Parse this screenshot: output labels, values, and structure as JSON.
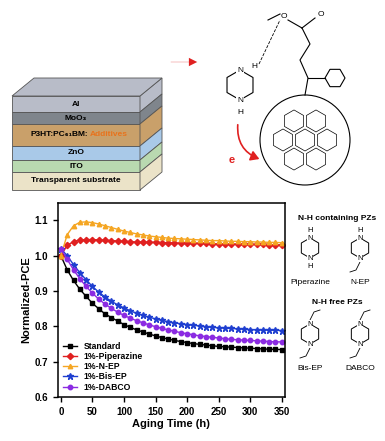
{
  "chart_data": {
    "type": "line",
    "x_label": "Aging Time (h)",
    "y_label": "Normalized-PCE",
    "x": [
      0,
      10,
      20,
      30,
      40,
      50,
      60,
      70,
      80,
      90,
      100,
      110,
      120,
      130,
      140,
      150,
      160,
      170,
      180,
      190,
      200,
      210,
      220,
      230,
      240,
      250,
      260,
      270,
      280,
      290,
      300,
      310,
      320,
      330,
      340,
      350
    ],
    "series": [
      {
        "name": "Standard",
        "color": "#000000",
        "marker": "square",
        "line_style": "solid",
        "values": [
          1.0,
          0.96,
          0.93,
          0.905,
          0.885,
          0.865,
          0.85,
          0.835,
          0.825,
          0.815,
          0.805,
          0.797,
          0.79,
          0.784,
          0.778,
          0.773,
          0.768,
          0.764,
          0.76,
          0.757,
          0.754,
          0.751,
          0.749,
          0.747,
          0.745,
          0.743,
          0.742,
          0.741,
          0.74,
          0.739,
          0.738,
          0.737,
          0.736,
          0.735,
          0.735,
          0.734
        ]
      },
      {
        "name": "1%-Piperazine",
        "color": "#e02020",
        "marker": "diamond",
        "line_style": "solid",
        "values": [
          1.0,
          1.03,
          1.04,
          1.045,
          1.046,
          1.046,
          1.045,
          1.044,
          1.043,
          1.042,
          1.041,
          1.04,
          1.039,
          1.039,
          1.038,
          1.038,
          1.037,
          1.037,
          1.036,
          1.036,
          1.036,
          1.035,
          1.035,
          1.035,
          1.034,
          1.034,
          1.034,
          1.033,
          1.033,
          1.033,
          1.032,
          1.032,
          1.032,
          1.031,
          1.031,
          1.031
        ]
      },
      {
        "name": "1%-N-EP",
        "color": "#f5a623",
        "marker": "triangle",
        "line_style": "solid",
        "values": [
          1.0,
          1.06,
          1.085,
          1.095,
          1.096,
          1.094,
          1.09,
          1.085,
          1.08,
          1.075,
          1.07,
          1.066,
          1.062,
          1.059,
          1.056,
          1.054,
          1.052,
          1.05,
          1.049,
          1.048,
          1.047,
          1.046,
          1.045,
          1.044,
          1.043,
          1.043,
          1.042,
          1.041,
          1.041,
          1.04,
          1.04,
          1.039,
          1.039,
          1.038,
          1.038,
          1.037
        ]
      },
      {
        "name": "1%-Bis-EP",
        "color": "#1f3fd0",
        "marker": "star",
        "line_style": "solid",
        "values": [
          1.02,
          1.0,
          0.975,
          0.952,
          0.932,
          0.913,
          0.897,
          0.883,
          0.871,
          0.861,
          0.852,
          0.844,
          0.837,
          0.831,
          0.826,
          0.821,
          0.817,
          0.813,
          0.81,
          0.807,
          0.805,
          0.803,
          0.801,
          0.799,
          0.797,
          0.796,
          0.795,
          0.794,
          0.793,
          0.792,
          0.791,
          0.79,
          0.79,
          0.789,
          0.789,
          0.788
        ]
      },
      {
        "name": "1%-DABCO",
        "color": "#8b2be2",
        "marker": "circle",
        "line_style": "solid",
        "values": [
          1.02,
          0.99,
          0.96,
          0.935,
          0.913,
          0.894,
          0.877,
          0.863,
          0.851,
          0.84,
          0.831,
          0.823,
          0.816,
          0.81,
          0.804,
          0.799,
          0.794,
          0.79,
          0.786,
          0.782,
          0.779,
          0.776,
          0.773,
          0.771,
          0.769,
          0.767,
          0.765,
          0.763,
          0.762,
          0.761,
          0.76,
          0.759,
          0.758,
          0.757,
          0.756,
          0.756
        ]
      }
    ],
    "xlim": [
      -5,
      355
    ],
    "xticks": [
      0,
      50,
      100,
      150,
      200,
      250,
      300,
      350
    ],
    "ylim": [
      0.6,
      1.15
    ],
    "yticks": [
      0.6,
      0.7,
      0.8,
      0.9,
      1.0,
      1.1
    ],
    "legend": "lower left",
    "grid": false,
    "annotations": {
      "groups": [
        "N-H containing PZs",
        "N-H free PZs"
      ],
      "structures": [
        {
          "name": "Piperazine",
          "atoms": [
            "N",
            "N",
            "H",
            "H"
          ]
        },
        {
          "name": "N-EP",
          "atoms": [
            "N",
            "N",
            "H"
          ]
        },
        {
          "name": "Bis-EP",
          "atoms": [
            "N",
            "N"
          ]
        },
        {
          "name": "DABCO",
          "atoms": [
            "N",
            "N"
          ]
        }
      ]
    }
  },
  "device": {
    "layers": [
      "Al",
      "MoO₃",
      "P3HT:PC₆₁BM:",
      "ZnO",
      "ITO",
      "Transparent substrate"
    ],
    "additive_label": "Additives",
    "molecule_atoms": [
      "N",
      "H",
      "N",
      "H",
      "O",
      "O"
    ],
    "electron": "e"
  }
}
